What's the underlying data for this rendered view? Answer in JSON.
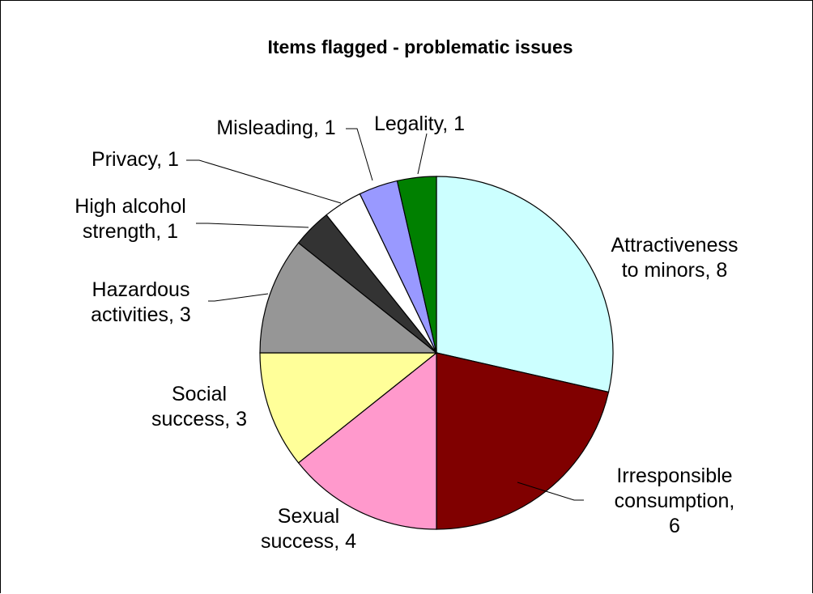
{
  "chart_data": {
    "type": "pie",
    "title": "Items flagged - problematic issues",
    "slices": [
      {
        "label_lines": [
          "Attractiveness",
          "to minors, 8"
        ],
        "value": 8,
        "color": "#ccffff"
      },
      {
        "label_lines": [
          "Irresponsible",
          "consumption,",
          "6"
        ],
        "value": 6,
        "color": "#800000"
      },
      {
        "label_lines": [
          "Sexual",
          "success, 4"
        ],
        "value": 4,
        "color": "#ff99cc"
      },
      {
        "label_lines": [
          "Social",
          "success, 3"
        ],
        "value": 3,
        "color": "#ffff99"
      },
      {
        "label_lines": [
          "Hazardous",
          "activities, 3"
        ],
        "value": 3,
        "color": "#969696"
      },
      {
        "label_lines": [
          "High alcohol",
          "strength, 1"
        ],
        "value": 1,
        "color": "#333333"
      },
      {
        "label_lines": [
          "Privacy, 1"
        ],
        "value": 1,
        "color": "#ffffff"
      },
      {
        "label_lines": [
          "Misleading, 1"
        ],
        "value": 1,
        "color": "#9999ff"
      },
      {
        "label_lines": [
          "Legality, 1"
        ],
        "value": 1,
        "color": "#008000"
      }
    ],
    "start_angle": "12 o'clock",
    "direction": "clockwise",
    "legend": "none"
  }
}
